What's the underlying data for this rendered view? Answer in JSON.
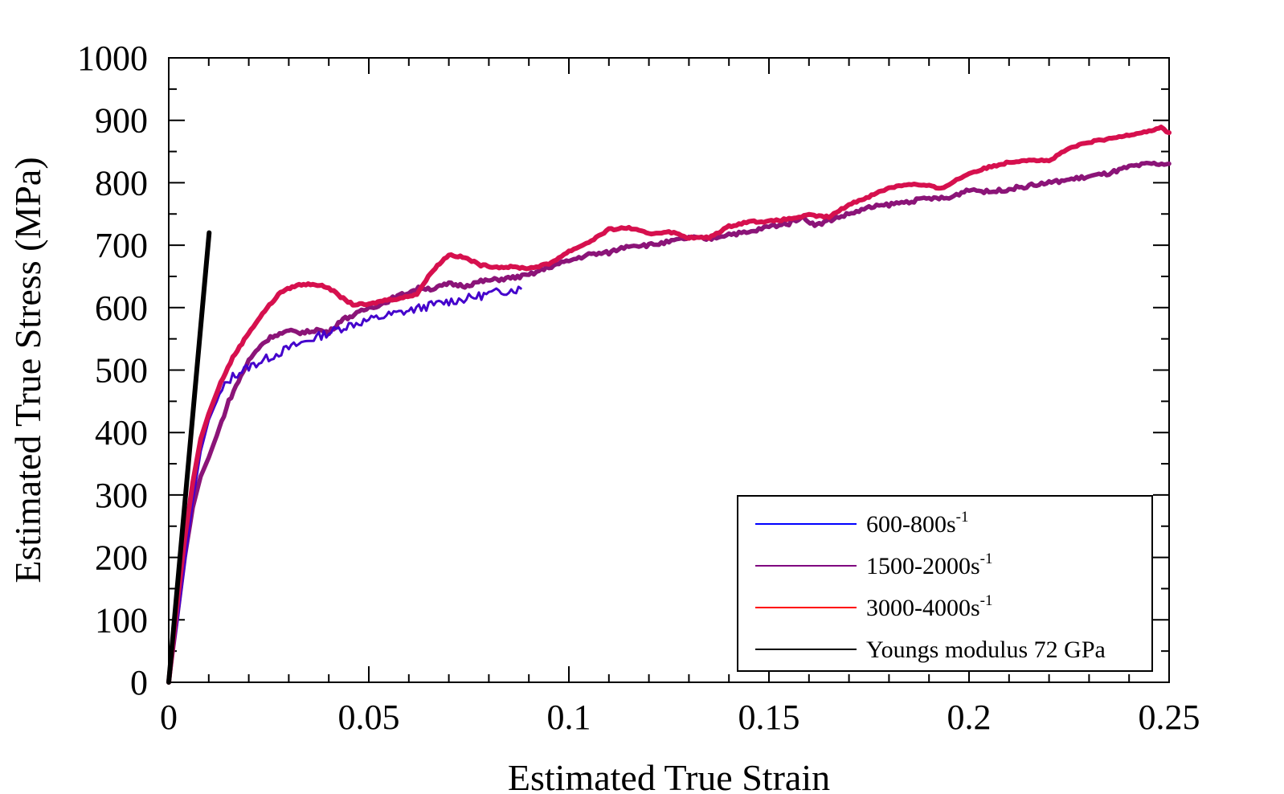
{
  "chart_data": {
    "type": "line",
    "title": "",
    "xlabel": "Estimated True Strain",
    "ylabel": "Estimated True Stress (MPa)",
    "xlim": [
      0,
      0.25
    ],
    "ylim": [
      0,
      1000
    ],
    "x_ticks": [
      0,
      0.05,
      0.1,
      0.15,
      0.2,
      0.25
    ],
    "x_tick_labels": [
      "0",
      "0.05",
      "0.1",
      "0.15",
      "0.2",
      "0.25"
    ],
    "y_ticks": [
      0,
      100,
      200,
      300,
      400,
      500,
      600,
      700,
      800,
      900,
      1000
    ],
    "y_tick_labels": [
      "0",
      "100",
      "200",
      "300",
      "400",
      "500",
      "600",
      "700",
      "800",
      "900",
      "1000"
    ],
    "grid": false,
    "legend_placement": "bottom-right",
    "series": [
      {
        "name": "600-800s",
        "name_sup": "-1",
        "color": "#4400cc",
        "legend_color": "#0000ff",
        "noise": 7,
        "points": [
          [
            0,
            0
          ],
          [
            0.002,
            90
          ],
          [
            0.004,
            190
          ],
          [
            0.006,
            290
          ],
          [
            0.008,
            370
          ],
          [
            0.01,
            420
          ],
          [
            0.012,
            450
          ],
          [
            0.014,
            475
          ],
          [
            0.016,
            490
          ],
          [
            0.02,
            505
          ],
          [
            0.025,
            520
          ],
          [
            0.03,
            535
          ],
          [
            0.035,
            548
          ],
          [
            0.04,
            560
          ],
          [
            0.045,
            572
          ],
          [
            0.05,
            580
          ],
          [
            0.055,
            588
          ],
          [
            0.06,
            595
          ],
          [
            0.065,
            603
          ],
          [
            0.07,
            610
          ],
          [
            0.075,
            615
          ],
          [
            0.08,
            622
          ],
          [
            0.085,
            628
          ],
          [
            0.088,
            630
          ]
        ]
      },
      {
        "name": "1500-2000s",
        "name_sup": "-1",
        "color": "#8b1478",
        "legend_color": "#800080",
        "noise": 3,
        "points": [
          [
            0,
            0
          ],
          [
            0.002,
            100
          ],
          [
            0.004,
            200
          ],
          [
            0.006,
            280
          ],
          [
            0.008,
            330
          ],
          [
            0.01,
            360
          ],
          [
            0.012,
            395
          ],
          [
            0.015,
            450
          ],
          [
            0.018,
            490
          ],
          [
            0.02,
            515
          ],
          [
            0.023,
            540
          ],
          [
            0.026,
            555
          ],
          [
            0.03,
            562
          ],
          [
            0.034,
            560
          ],
          [
            0.037,
            565
          ],
          [
            0.04,
            560
          ],
          [
            0.043,
            580
          ],
          [
            0.047,
            590
          ],
          [
            0.05,
            600
          ],
          [
            0.053,
            605
          ],
          [
            0.056,
            615
          ],
          [
            0.06,
            625
          ],
          [
            0.063,
            632
          ],
          [
            0.066,
            630
          ],
          [
            0.07,
            638
          ],
          [
            0.074,
            635
          ],
          [
            0.078,
            642
          ],
          [
            0.082,
            645
          ],
          [
            0.086,
            648
          ],
          [
            0.09,
            652
          ],
          [
            0.095,
            665
          ],
          [
            0.1,
            675
          ],
          [
            0.105,
            685
          ],
          [
            0.11,
            688
          ],
          [
            0.115,
            700
          ],
          [
            0.12,
            700
          ],
          [
            0.125,
            705
          ],
          [
            0.13,
            712
          ],
          [
            0.135,
            710
          ],
          [
            0.14,
            718
          ],
          [
            0.145,
            720
          ],
          [
            0.15,
            730
          ],
          [
            0.155,
            735
          ],
          [
            0.158,
            745
          ],
          [
            0.162,
            732
          ],
          [
            0.165,
            740
          ],
          [
            0.17,
            750
          ],
          [
            0.175,
            760
          ],
          [
            0.18,
            765
          ],
          [
            0.185,
            770
          ],
          [
            0.19,
            775
          ],
          [
            0.195,
            775
          ],
          [
            0.2,
            790
          ],
          [
            0.205,
            785
          ],
          [
            0.21,
            790
          ],
          [
            0.215,
            795
          ],
          [
            0.22,
            800
          ],
          [
            0.225,
            805
          ],
          [
            0.23,
            810
          ],
          [
            0.235,
            815
          ],
          [
            0.24,
            825
          ],
          [
            0.245,
            830
          ],
          [
            0.25,
            830
          ]
        ]
      },
      {
        "name": "3000-4000s",
        "name_sup": "-1",
        "color": "#d6104e",
        "legend_color": "#ff0000",
        "noise": 1.5,
        "points": [
          [
            0,
            0
          ],
          [
            0.002,
            120
          ],
          [
            0.004,
            230
          ],
          [
            0.006,
            320
          ],
          [
            0.008,
            390
          ],
          [
            0.01,
            430
          ],
          [
            0.013,
            480
          ],
          [
            0.016,
            520
          ],
          [
            0.02,
            560
          ],
          [
            0.024,
            595
          ],
          [
            0.028,
            625
          ],
          [
            0.032,
            636
          ],
          [
            0.036,
            638
          ],
          [
            0.04,
            632
          ],
          [
            0.043,
            617
          ],
          [
            0.046,
            605
          ],
          [
            0.05,
            605
          ],
          [
            0.054,
            612
          ],
          [
            0.058,
            615
          ],
          [
            0.062,
            622
          ],
          [
            0.066,
            660
          ],
          [
            0.07,
            685
          ],
          [
            0.074,
            680
          ],
          [
            0.078,
            668
          ],
          [
            0.082,
            665
          ],
          [
            0.086,
            665
          ],
          [
            0.09,
            663
          ],
          [
            0.095,
            670
          ],
          [
            0.1,
            690
          ],
          [
            0.105,
            705
          ],
          [
            0.11,
            725
          ],
          [
            0.115,
            728
          ],
          [
            0.12,
            718
          ],
          [
            0.125,
            722
          ],
          [
            0.13,
            712
          ],
          [
            0.135,
            712
          ],
          [
            0.14,
            730
          ],
          [
            0.145,
            738
          ],
          [
            0.15,
            738
          ],
          [
            0.155,
            742
          ],
          [
            0.16,
            748
          ],
          [
            0.165,
            745
          ],
          [
            0.17,
            765
          ],
          [
            0.175,
            778
          ],
          [
            0.18,
            792
          ],
          [
            0.185,
            798
          ],
          [
            0.19,
            795
          ],
          [
            0.193,
            790
          ],
          [
            0.195,
            798
          ],
          [
            0.2,
            815
          ],
          [
            0.205,
            825
          ],
          [
            0.21,
            833
          ],
          [
            0.215,
            837
          ],
          [
            0.22,
            835
          ],
          [
            0.225,
            855
          ],
          [
            0.23,
            865
          ],
          [
            0.235,
            870
          ],
          [
            0.24,
            877
          ],
          [
            0.245,
            883
          ],
          [
            0.248,
            888
          ],
          [
            0.25,
            880
          ]
        ]
      },
      {
        "name": "Youngs modulus 72 GPa",
        "name_sup": "",
        "color": "#000000",
        "legend_color": "#000000",
        "noise": 0,
        "points": [
          [
            0,
            0
          ],
          [
            0.0101,
            720
          ]
        ]
      }
    ]
  }
}
